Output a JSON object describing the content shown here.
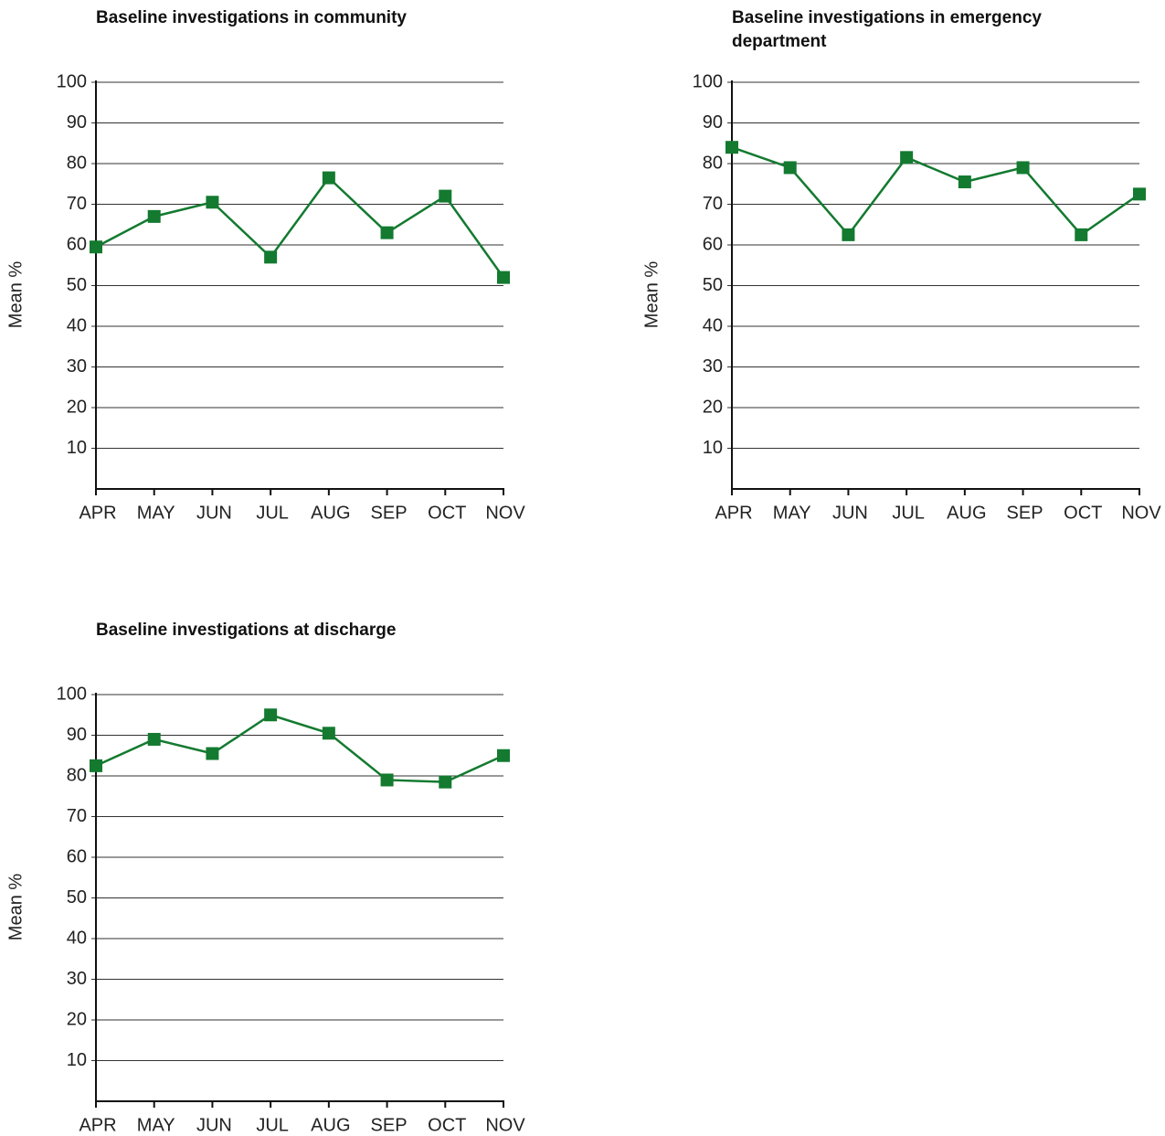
{
  "chart_data": [
    {
      "type": "line",
      "title": "Baseline investigations in community",
      "y_label": "Mean %",
      "categories": [
        "APR",
        "MAY",
        "JUN",
        "JUL",
        "AUG",
        "SEP",
        "OCT",
        "NOV"
      ],
      "values": [
        59.5,
        67,
        70.5,
        57,
        76.5,
        63,
        72,
        52
      ],
      "color": "#137a30",
      "ylim": [
        0,
        100
      ],
      "yticks": [
        10,
        20,
        30,
        40,
        50,
        60,
        70,
        80,
        90,
        100
      ],
      "grid": true
    },
    {
      "type": "line",
      "title": "Baseline investigations in emergency department",
      "y_label": "Mean %",
      "categories": [
        "APR",
        "MAY",
        "JUN",
        "JUL",
        "AUG",
        "SEP",
        "OCT",
        "NOV"
      ],
      "values": [
        84,
        79,
        62.5,
        81.5,
        75.5,
        79,
        62.5,
        72.5
      ],
      "color": "#137a30",
      "ylim": [
        0,
        100
      ],
      "yticks": [
        10,
        20,
        30,
        40,
        50,
        60,
        70,
        80,
        90,
        100
      ],
      "grid": true
    },
    {
      "type": "line",
      "title": "Baseline investigations at discharge",
      "y_label": "Mean %",
      "categories": [
        "APR",
        "MAY",
        "JUN",
        "JUL",
        "AUG",
        "SEP",
        "OCT",
        "NOV"
      ],
      "values": [
        82.5,
        89,
        85.5,
        95,
        90.5,
        79,
        78.5,
        85
      ],
      "color": "#137a30",
      "ylim": [
        0,
        100
      ],
      "yticks": [
        10,
        20,
        30,
        40,
        50,
        60,
        70,
        80,
        90,
        100
      ],
      "grid": true
    }
  ]
}
